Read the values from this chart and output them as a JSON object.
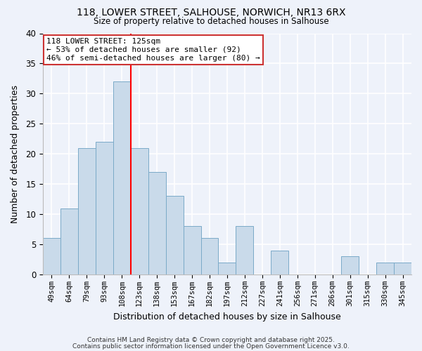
{
  "title_line1": "118, LOWER STREET, SALHOUSE, NORWICH, NR13 6RX",
  "title_line2": "Size of property relative to detached houses in Salhouse",
  "xlabel": "Distribution of detached houses by size in Salhouse",
  "ylabel": "Number of detached properties",
  "bar_labels": [
    "49sqm",
    "64sqm",
    "79sqm",
    "93sqm",
    "108sqm",
    "123sqm",
    "138sqm",
    "153sqm",
    "167sqm",
    "182sqm",
    "197sqm",
    "212sqm",
    "227sqm",
    "241sqm",
    "256sqm",
    "271sqm",
    "286sqm",
    "301sqm",
    "315sqm",
    "330sqm",
    "345sqm"
  ],
  "bar_values": [
    6,
    11,
    21,
    22,
    32,
    21,
    17,
    13,
    8,
    6,
    2,
    8,
    0,
    4,
    0,
    0,
    0,
    3,
    0,
    2,
    2
  ],
  "bar_color": "#c9daea",
  "bar_edge_color": "#7aaac8",
  "background_color": "#eef2fa",
  "grid_color": "#ffffff",
  "vline_index": 5,
  "vline_color": "red",
  "annotation_title": "118 LOWER STREET: 125sqm",
  "annotation_line2": "← 53% of detached houses are smaller (92)",
  "annotation_line3": "46% of semi-detached houses are larger (80) →",
  "annotation_box_color": "#ffffff",
  "annotation_box_edge": "#cc3333",
  "ylim": [
    0,
    40
  ],
  "yticks": [
    0,
    5,
    10,
    15,
    20,
    25,
    30,
    35,
    40
  ],
  "footer_line1": "Contains HM Land Registry data © Crown copyright and database right 2025.",
  "footer_line2": "Contains public sector information licensed under the Open Government Licence v3.0."
}
